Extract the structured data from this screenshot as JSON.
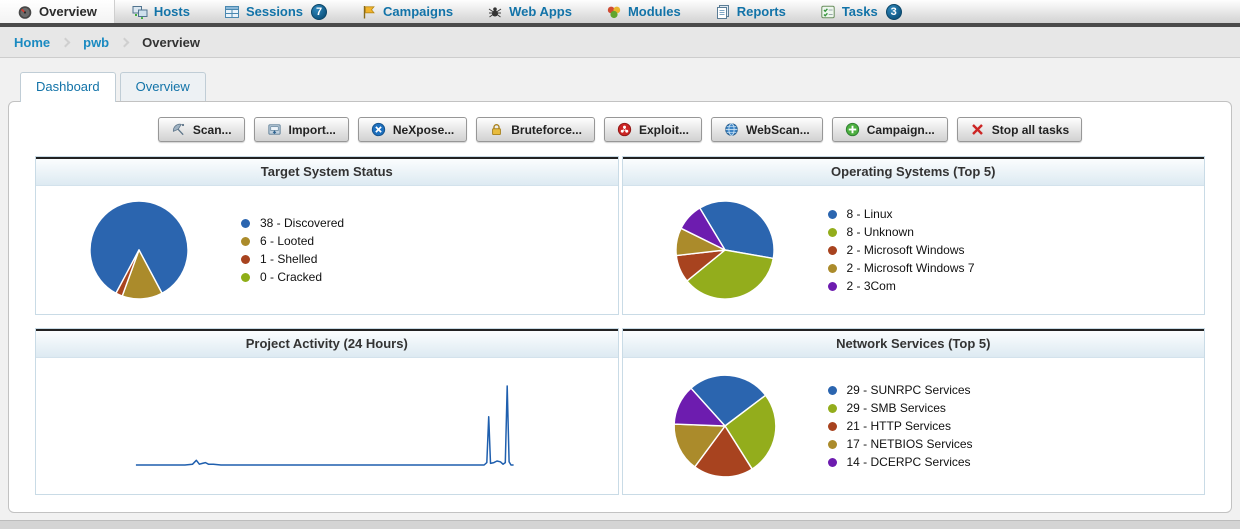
{
  "nav": {
    "items": [
      {
        "id": "overview",
        "label": "Overview",
        "icon": "gauge-icon",
        "active": true
      },
      {
        "id": "hosts",
        "label": "Hosts",
        "icon": "hosts-icon",
        "active": false
      },
      {
        "id": "sessions",
        "label": "Sessions",
        "icon": "sessions-icon",
        "active": false,
        "badge": "7"
      },
      {
        "id": "campaigns",
        "label": "Campaigns",
        "icon": "flag-icon",
        "active": false
      },
      {
        "id": "webapps",
        "label": "Web Apps",
        "icon": "spider-icon",
        "active": false
      },
      {
        "id": "modules",
        "label": "Modules",
        "icon": "modules-icon",
        "active": false
      },
      {
        "id": "reports",
        "label": "Reports",
        "icon": "reports-icon",
        "active": false
      },
      {
        "id": "tasks",
        "label": "Tasks",
        "icon": "tasks-icon",
        "active": false,
        "badge": "3"
      }
    ]
  },
  "breadcrumb": {
    "items": [
      {
        "label": "Home",
        "type": "link"
      },
      {
        "label": "pwb",
        "type": "link"
      },
      {
        "label": "Overview",
        "type": "current"
      }
    ]
  },
  "tabs": [
    {
      "id": "dashboard",
      "label": "Dashboard",
      "active": true
    },
    {
      "id": "overview",
      "label": "Overview",
      "active": false
    }
  ],
  "toolbar": {
    "buttons": [
      {
        "id": "scan",
        "label": "Scan...",
        "icon": "scan-icon"
      },
      {
        "id": "import",
        "label": "Import...",
        "icon": "import-icon"
      },
      {
        "id": "nexpose",
        "label": "NeXpose...",
        "icon": "nexpose-icon"
      },
      {
        "id": "bruteforce",
        "label": "Bruteforce...",
        "icon": "lock-icon"
      },
      {
        "id": "exploit",
        "label": "Exploit...",
        "icon": "biohazard-icon"
      },
      {
        "id": "webscan",
        "label": "WebScan...",
        "icon": "globe-icon"
      },
      {
        "id": "campaign",
        "label": "Campaign...",
        "icon": "plus-circle-icon"
      },
      {
        "id": "stop",
        "label": "Stop all tasks",
        "icon": "stop-x-icon"
      }
    ]
  },
  "colors": {
    "nav_link_blue": "#1273a8",
    "breadcrumb_link_blue": "#1a8ac1",
    "badge_blue": "#0f5580",
    "panel_border_blue": "#c9dbe6",
    "line_chart_blue": "#1f5fae"
  },
  "chart_data": [
    {
      "type": "pie",
      "title": "Target System Status",
      "labels": [
        "Discovered",
        "Looted",
        "Shelled",
        "Cracked"
      ],
      "values": [
        38,
        6,
        1,
        0
      ],
      "legend": [
        "38 - Discovered",
        "6 - Looted",
        "1 - Shelled",
        "0 - Cracked"
      ],
      "colors": [
        "#2b65af",
        "#ab8b2b",
        "#a8431f",
        "#8fae17"
      ],
      "start_angle_deg": 208,
      "legend_position": "right"
    },
    {
      "type": "pie",
      "title": "Operating Systems (Top 5)",
      "labels": [
        "Linux",
        "Unknown",
        "Microsoft Windows",
        "Microsoft Windows 7",
        "3Com"
      ],
      "values": [
        8,
        8,
        2,
        2,
        2
      ],
      "legend": [
        "8 - Linux",
        "8 - Unknown",
        "2 - Microsoft Windows",
        "2 - Microsoft Windows 7",
        "2 - 3Com"
      ],
      "colors": [
        "#2b65af",
        "#93ad1c",
        "#a8431f",
        "#ab8b2b",
        "#6d1caf"
      ],
      "start_angle_deg": -31,
      "legend_position": "right"
    },
    {
      "type": "line",
      "title": "Project Activity (24 Hours)",
      "color": "#1f5fae",
      "axes_visible": false,
      "y_normalized_max": 100,
      "points": [
        [
          0,
          0
        ],
        [
          0.13,
          0
        ],
        [
          0.15,
          1
        ],
        [
          0.16,
          6
        ],
        [
          0.168,
          1
        ],
        [
          0.176,
          2
        ],
        [
          0.184,
          3
        ],
        [
          0.192,
          1
        ],
        [
          0.205,
          1
        ],
        [
          0.225,
          0
        ],
        [
          0.55,
          0
        ],
        [
          0.85,
          0
        ],
        [
          0.922,
          0
        ],
        [
          0.929,
          3
        ],
        [
          0.934,
          61
        ],
        [
          0.939,
          2
        ],
        [
          0.948,
          3
        ],
        [
          0.956,
          5
        ],
        [
          0.965,
          4
        ],
        [
          0.972,
          1
        ],
        [
          0.978,
          3
        ],
        [
          0.983,
          100
        ],
        [
          0.988,
          4
        ],
        [
          0.993,
          0
        ],
        [
          1,
          0
        ]
      ]
    },
    {
      "type": "pie",
      "title": "Network Services (Top 5)",
      "labels": [
        "SUNRPC Services",
        "SMB Services",
        "HTTP Services",
        "NETBIOS Services",
        "DCERPC Services"
      ],
      "values": [
        29,
        29,
        21,
        17,
        14
      ],
      "legend": [
        "29 - SUNRPC Services",
        "29 - SMB Services",
        "21 - HTTP Services",
        "17 - NETBIOS Services",
        "14 - DCERPC Services"
      ],
      "colors": [
        "#2b65af",
        "#93ad1c",
        "#a8431f",
        "#ab8b2b",
        "#6d1caf"
      ],
      "start_angle_deg": -42,
      "legend_position": "right"
    }
  ]
}
